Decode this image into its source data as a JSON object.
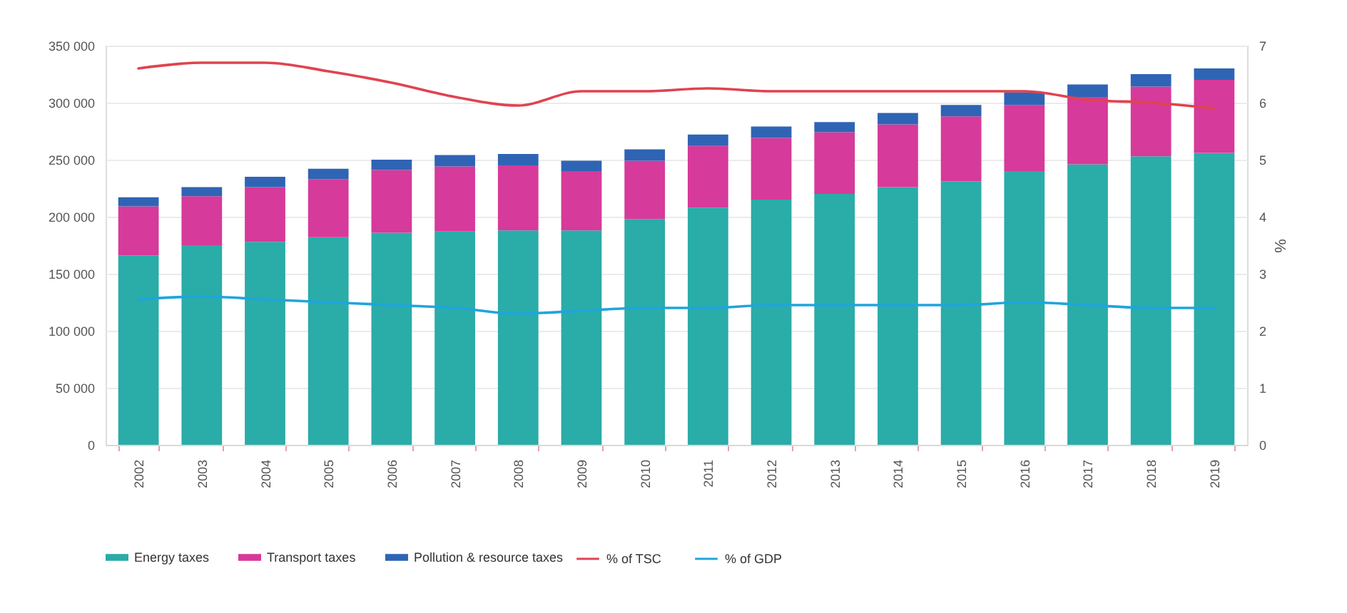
{
  "chart_data": {
    "type": "bar",
    "stacked": true,
    "categories": [
      "2002",
      "2003",
      "2004",
      "2005",
      "2006",
      "2007",
      "2008",
      "2009",
      "2010",
      "2011",
      "2012",
      "2013",
      "2014",
      "2015",
      "2016",
      "2017",
      "2018",
      "2019"
    ],
    "series": [
      {
        "name": "Energy taxes",
        "color": "#2aaca8",
        "values": [
          166000,
          175000,
          178000,
          182000,
          186000,
          187000,
          188000,
          188000,
          198000,
          208000,
          215000,
          220000,
          226000,
          231000,
          240000,
          246000,
          253000,
          256000
        ]
      },
      {
        "name": "Transport taxes",
        "color": "#d63a9a",
        "values": [
          43000,
          43000,
          48000,
          51000,
          55000,
          57000,
          57000,
          52000,
          51000,
          54000,
          54000,
          54000,
          55000,
          57000,
          58000,
          59000,
          61000,
          64000
        ]
      },
      {
        "name": "Pollution & resource taxes",
        "color": "#2f64b5",
        "values": [
          8000,
          8000,
          9000,
          9000,
          9000,
          10000,
          10000,
          9000,
          10000,
          10000,
          10000,
          9000,
          10000,
          10000,
          11000,
          11000,
          11000,
          10000
        ]
      },
      {
        "name": "% of TSC",
        "type": "line",
        "axis": "y2",
        "color": "#e0434f",
        "values": [
          6.6,
          6.7,
          6.7,
          6.55,
          6.35,
          6.1,
          5.95,
          6.2,
          6.2,
          6.25,
          6.2,
          6.2,
          6.2,
          6.2,
          6.2,
          6.05,
          6.0,
          5.9
        ]
      },
      {
        "name": "% of GDP",
        "type": "line",
        "axis": "y2",
        "color": "#1fa5dc",
        "values": [
          2.55,
          2.6,
          2.55,
          2.5,
          2.45,
          2.4,
          2.3,
          2.35,
          2.4,
          2.4,
          2.45,
          2.45,
          2.45,
          2.45,
          2.5,
          2.45,
          2.4,
          2.4
        ]
      }
    ],
    "ylim": [
      0,
      350000
    ],
    "yticks": [
      {
        "value": 0,
        "label": "0"
      },
      {
        "value": 50000,
        "label": "50 000"
      },
      {
        "value": 100000,
        "label": "100 000"
      },
      {
        "value": 150000,
        "label": "150 000"
      },
      {
        "value": 200000,
        "label": "200 000"
      },
      {
        "value": 250000,
        "label": "250 000"
      },
      {
        "value": 300000,
        "label": "300 000"
      },
      {
        "value": 350000,
        "label": "350 000"
      }
    ],
    "y2label": "%",
    "y2lim": [
      0,
      7
    ],
    "y2ticks": [
      0,
      1,
      2,
      3,
      4,
      5,
      6,
      7
    ],
    "grid": "y",
    "legend": "bottom"
  }
}
